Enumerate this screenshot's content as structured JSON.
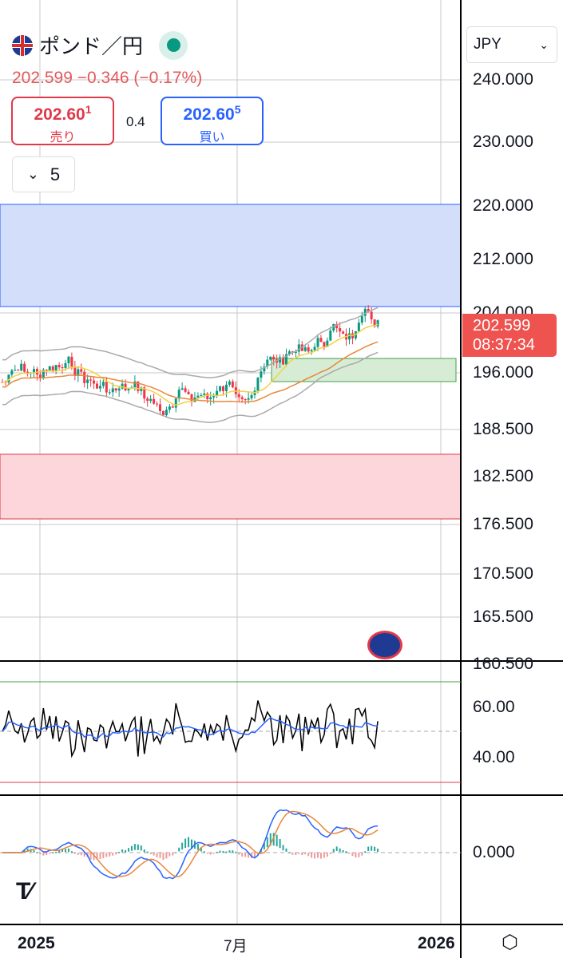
{
  "header": {
    "symbol": "ポンド／円",
    "market_status": "open",
    "quote": "202.599  −0.346 (−0.17%)",
    "sell": {
      "price": "202.60",
      "pip": "1",
      "label": "売り"
    },
    "buy": {
      "price": "202.60",
      "pip": "5",
      "label": "買い"
    },
    "spread": "0.4",
    "indicators_toggle": "5"
  },
  "currency_select": "JPY",
  "price_axis": [
    "240.000",
    "230.000",
    "220.000",
    "212.000",
    "204.000",
    "196.000",
    "188.500",
    "182.500",
    "176.500",
    "170.500",
    "165.500",
    "160.500"
  ],
  "last_price": {
    "value": "202.599",
    "countdown": "08:37:34"
  },
  "rsi_axis": [
    "60.00",
    "40.00"
  ],
  "macd_axis": [
    "0.000"
  ],
  "time_axis": [
    "2025",
    "7月",
    "2026"
  ],
  "colors": {
    "up": "#089981",
    "down": "#f23645",
    "buy": "#2962ff",
    "sell": "#e0394a",
    "resistance_zone": "#d3defb",
    "support_zone": "#fcd6da",
    "box": "#d6ecd4"
  }
}
